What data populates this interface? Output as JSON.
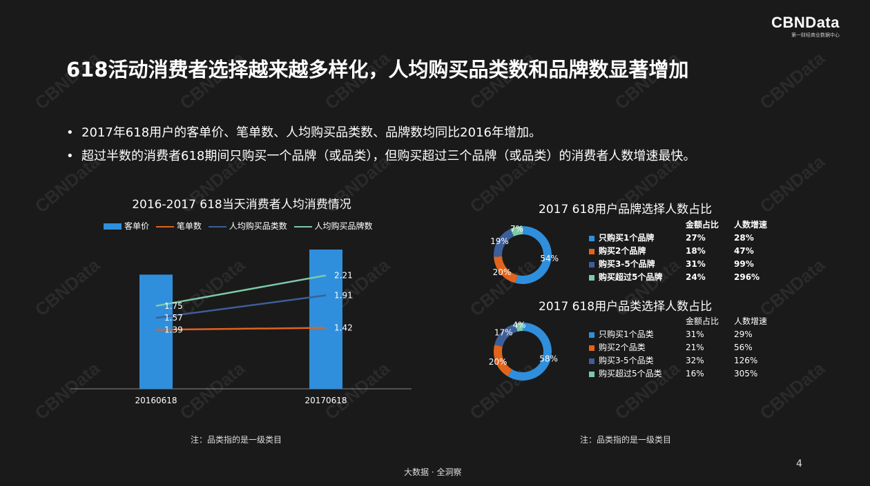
{
  "logo": {
    "main": "CBNData",
    "sub": "第一财经商业数据中心"
  },
  "title": "618活动消费者选择越来越多样化，人均购买品类数和品牌数显著增加",
  "bullets": [
    "2017年618用户的客单价、笔单数、人均购买品类数、品牌数均同比2016年增加。",
    "超过半数的消费者618期间只购买一个品牌（或品类），但购买超过三个品牌（或品类）的消费者人数增速最快。"
  ],
  "bullet_mark": "•",
  "watermark": "CBNData",
  "notes": {
    "left": "注：品类指的是一级类目",
    "right": "注：品类指的是一级类目"
  },
  "footer": {
    "center": "大数据 · 全洞察",
    "page": "4"
  },
  "colors": {
    "blue": "#2f8fdc",
    "orange": "#e0641c",
    "navy": "#3d5f99",
    "teal": "#7ec9a8",
    "gray_text": "#ddd"
  },
  "chart_data": [
    {
      "type": "bar",
      "title": "2016-2017 618当天消费者人均消费情况",
      "categories": [
        "20160618",
        "20170618"
      ],
      "series": [
        {
          "name": "客单价",
          "kind": "bar",
          "color": "#2f8fdc",
          "values": [
            null,
            null
          ]
        },
        {
          "name": "笔单数",
          "kind": "line",
          "color": "#e0641c",
          "values": [
            1.39,
            1.42
          ]
        },
        {
          "name": "人均购买品类数",
          "kind": "line",
          "color": "#3d5f99",
          "values": [
            1.57,
            1.91
          ]
        },
        {
          "name": "人均购买品牌数",
          "kind": "line",
          "color": "#7ec9a8",
          "values": [
            1.75,
            2.21
          ]
        }
      ],
      "bar_relative": [
        0.82,
        1.0
      ],
      "line_scale": [
        0.5,
        2.6
      ],
      "data_labels": [
        "1.75",
        "1.57",
        "1.39",
        "2.21",
        "1.91",
        "1.42"
      ],
      "grid": false,
      "legend": "top"
    },
    {
      "type": "pie",
      "title": "2017 618用户品牌选择人数占比",
      "donut": true,
      "labels": [
        "只购买1个品牌",
        "购买2个品牌",
        "购买3-5个品牌",
        "购买超过5个品牌"
      ],
      "values": [
        54,
        20,
        19,
        7
      ],
      "value_labels": [
        "54%",
        "20%",
        "19%",
        "7%"
      ],
      "colors": [
        "#2f8fdc",
        "#e0641c",
        "#3d5f99",
        "#7ec9a8"
      ],
      "table_headers": [
        "金额占比",
        "人数增速"
      ],
      "table_rows": [
        [
          "27%",
          "28%"
        ],
        [
          "18%",
          "47%"
        ],
        [
          "31%",
          "99%"
        ],
        [
          "24%",
          "296%"
        ]
      ]
    },
    {
      "type": "pie",
      "title": "2017 618用户品类选择人数占比",
      "donut": true,
      "labels": [
        "只购买1个品类",
        "购买2个品类",
        "购买3-5个品类",
        "购买超过5个品类"
      ],
      "values": [
        58,
        20,
        17,
        4
      ],
      "value_labels": [
        "58%",
        "20%",
        "17%",
        "4%"
      ],
      "colors": [
        "#2f8fdc",
        "#e0641c",
        "#3d5f99",
        "#7ec9a8"
      ],
      "table_headers": [
        "金额占比",
        "人数增速"
      ],
      "table_rows": [
        [
          "31%",
          "29%"
        ],
        [
          "21%",
          "56%"
        ],
        [
          "32%",
          "126%"
        ],
        [
          "16%",
          "305%"
        ]
      ]
    }
  ]
}
